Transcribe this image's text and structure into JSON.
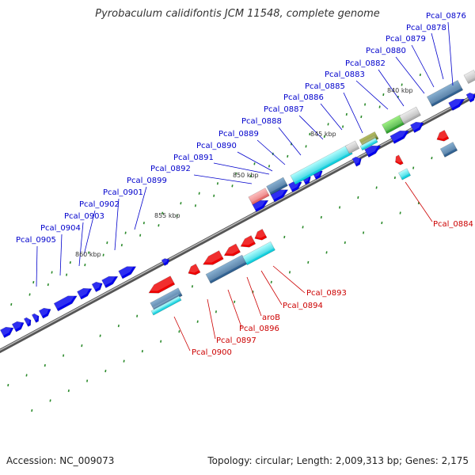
{
  "title": "Pyrobaculum calidifontis JCM 11548, complete genome",
  "footer": {
    "accession": "Accession: NC_009073",
    "summary": "Topology: circular; Length: 2,009,313 bp; Genes: 2,175"
  },
  "colors": {
    "forward_gene": "#0000ee",
    "reverse_gene": "#ee0000",
    "label_forward": "#0000cc",
    "label_reverse": "#cc0000",
    "backbone": "#888888",
    "tick": "#2a8a2a"
  },
  "position_markers": [
    "840 kbp",
    "845 kbp",
    "850 kbp",
    "855 kbp",
    "860 kbp"
  ],
  "forward_labels": [
    "Pcal_0876",
    "Pcal_0878",
    "Pcal_0879",
    "Pcal_0880",
    "Pcal_0882",
    "Pcal_0883",
    "Pcal_0885",
    "Pcal_0886",
    "Pcal_0887",
    "Pcal_0888",
    "Pcal_0889",
    "Pcal_0890",
    "Pcal_0891",
    "Pcal_0892",
    "Pcal_0899",
    "Pcal_0901",
    "Pcal_0902",
    "Pcal_0903",
    "Pcal_0904",
    "Pcal_0905"
  ],
  "reverse_labels": [
    "Pcal_0884",
    "Pcal_0893",
    "Pcal_0894",
    "aroB",
    "Pcal_0896",
    "Pcal_0897",
    "Pcal_0900"
  ]
}
